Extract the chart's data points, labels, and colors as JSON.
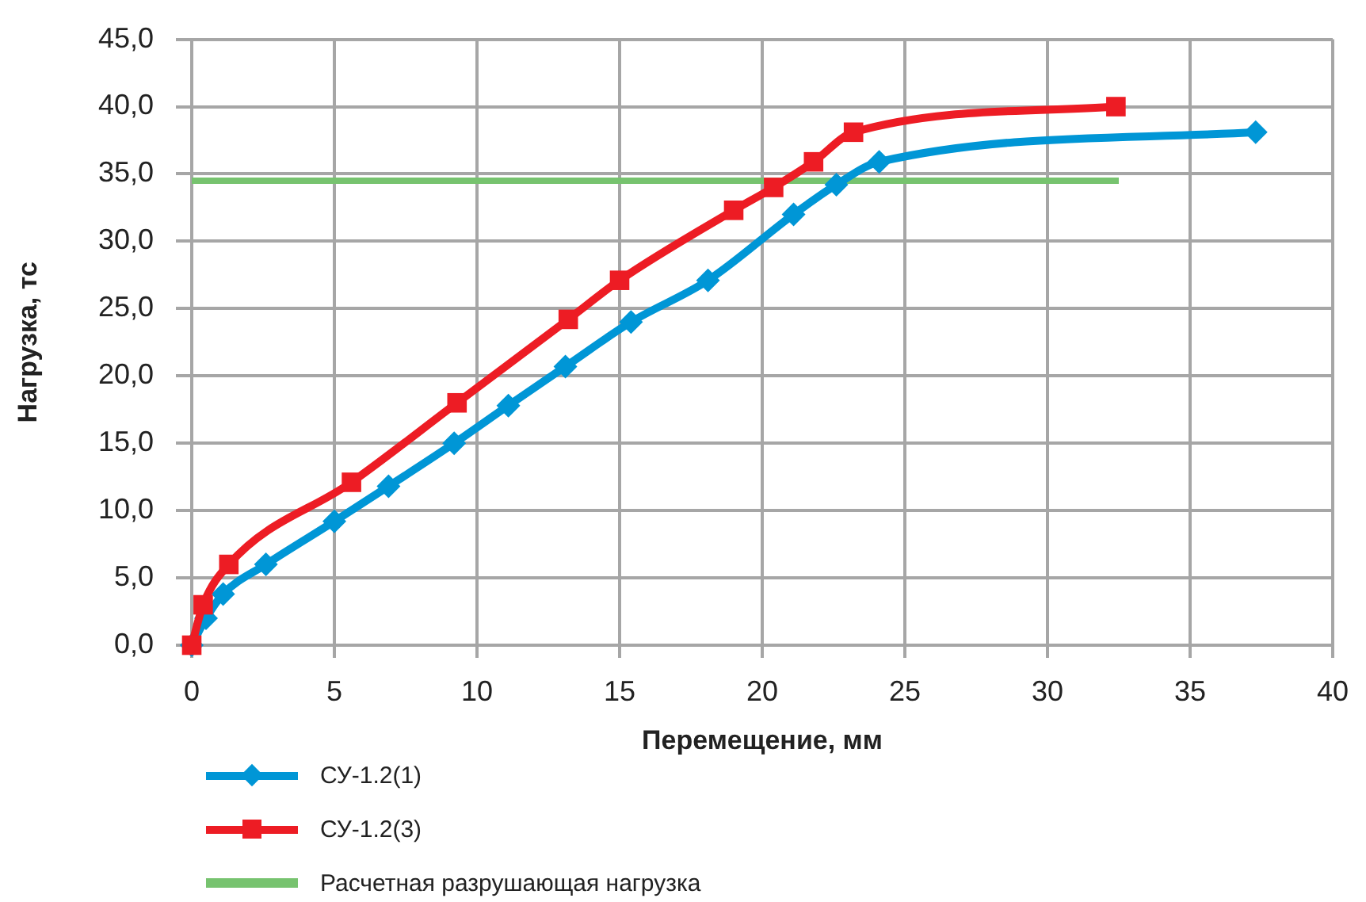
{
  "chart_data": {
    "type": "line",
    "xlabel": "Перемещение, мм",
    "ylabel": "Нагрузка, тс",
    "xlim": [
      0,
      40
    ],
    "xticks": [
      0,
      5,
      10,
      15,
      20,
      25,
      30,
      35,
      40
    ],
    "ylim": [
      0,
      45
    ],
    "yticks": [
      {
        "value": 0,
        "label": "0,0"
      },
      {
        "value": 5,
        "label": "5,0"
      },
      {
        "value": 10,
        "label": "10,0"
      },
      {
        "value": 15,
        "label": "15,0"
      },
      {
        "value": 20,
        "label": "20,0"
      },
      {
        "value": 25,
        "label": "25,0"
      },
      {
        "value": 30,
        "label": "30,0"
      },
      {
        "value": 35,
        "label": "35,0"
      },
      {
        "value": 40,
        "label": "40,0"
      },
      {
        "value": 45,
        "label": "45,0"
      }
    ],
    "grid": true,
    "legend": "bottom left",
    "line_style": "solid",
    "series": [
      {
        "name": "СУ-1.2(1)",
        "color": "#0096d6",
        "marker": "diamond",
        "x": [
          0,
          0.5,
          1.1,
          2.6,
          5.0,
          6.9,
          9.2,
          11.1,
          13.1,
          15.4,
          18.1,
          21.1,
          22.6,
          24.1,
          37.3
        ],
        "values": [
          0,
          2.0,
          3.8,
          6.0,
          9.2,
          11.8,
          15.0,
          17.8,
          20.7,
          24.0,
          27.1,
          32.0,
          34.2,
          35.9,
          38.1
        ]
      },
      {
        "name": "СУ-1.2(3)",
        "color": "#ed1c24",
        "marker": "square",
        "x": [
          0,
          0.4,
          1.3,
          5.6,
          9.3,
          13.2,
          15.0,
          19.0,
          20.4,
          21.8,
          23.2,
          32.4
        ],
        "values": [
          0,
          3.0,
          6.0,
          12.1,
          18.0,
          24.2,
          27.1,
          32.3,
          34.0,
          35.9,
          38.1,
          40.0
        ]
      },
      {
        "name": "Расчетная разрушающая нагрузка",
        "color": "#77c36f",
        "marker": "none",
        "x": [
          0,
          32.5
        ],
        "values": [
          34.5,
          34.5
        ]
      }
    ]
  }
}
